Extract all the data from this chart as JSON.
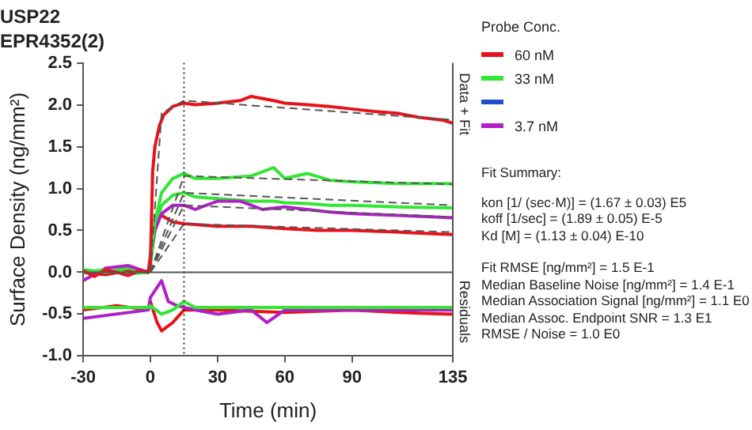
{
  "chart_data": [
    {
      "type": "line",
      "title": "USP22",
      "subtitle": "EPR4352(2)",
      "xlabel": "Time (min)",
      "ylabel": "Surface Density (ng/mm²)",
      "legend_title": "Probe Conc.",
      "xlim": [
        -30,
        135
      ],
      "xticks": [
        -30,
        0,
        30,
        60,
        90,
        135
      ],
      "ylim": [
        -1,
        2.5
      ],
      "yticks": [
        {
          "value": -1,
          "label": "-1.0"
        },
        {
          "value": -0.5,
          "label": "-0.5"
        },
        {
          "value": 0,
          "label": "0.0"
        },
        {
          "value": 0.5,
          "label": "0.5"
        },
        {
          "value": 1,
          "label": "1.0"
        },
        {
          "value": 1.5,
          "label": "1.5"
        },
        {
          "value": 2,
          "label": "2.0"
        },
        {
          "value": 2.5,
          "label": "2.5"
        }
      ],
      "grid": false,
      "legend": "top right",
      "marker": "none",
      "line_style": "solid",
      "ref_lines": [
        {
          "axis": "y",
          "value": 0,
          "color": "#555555",
          "line_style": "solid"
        },
        {
          "axis": "x",
          "value": 15,
          "color": "#333333",
          "line_style": "dotted"
        }
      ],
      "annotations": [
        "Data + Fit",
        "Residuals"
      ],
      "series": [
        {
          "name": "60 nM",
          "color": "#e8121a",
          "x": [
            -30,
            -25,
            -20,
            -15,
            -10,
            -5,
            -1,
            0,
            1,
            2,
            4,
            6,
            10,
            15,
            20,
            30,
            40,
            45,
            55,
            60,
            70,
            80,
            90,
            100,
            110,
            120,
            130,
            135
          ],
          "values": [
            0.02,
            -0.05,
            0.03,
            0,
            -0.04,
            0.02,
            0,
            0.1,
            1.2,
            1.5,
            1.75,
            1.88,
            1.98,
            2.02,
            2.0,
            2.02,
            2.05,
            2.1,
            2.05,
            2.02,
            2.0,
            1.98,
            1.95,
            1.92,
            1.9,
            1.85,
            1.82,
            1.78
          ]
        },
        {
          "name": "33 nM",
          "color": "#33e633",
          "x": [
            -30,
            -20,
            -10,
            -1,
            0,
            2,
            5,
            10,
            15,
            20,
            30,
            45,
            55,
            60,
            70,
            80,
            90,
            110,
            135
          ],
          "values": [
            0,
            0.03,
            -0.02,
            0,
            0.1,
            0.6,
            0.95,
            1.12,
            1.18,
            1.12,
            1.12,
            1.15,
            1.25,
            1.12,
            1.18,
            1.1,
            1.08,
            1.06,
            1.06
          ]
        },
        {
          "color": "#1f4fc8"
        },
        {
          "name": "3.7 nM",
          "color": "#b01fc8",
          "x": [
            -30,
            -20,
            -10,
            -1,
            0,
            2,
            5,
            10,
            15,
            20,
            30,
            40,
            45,
            50,
            60,
            70,
            80,
            90,
            110,
            135
          ],
          "values": [
            -0.1,
            0.05,
            0.08,
            0,
            0.15,
            0.5,
            0.7,
            0.8,
            0.8,
            0.75,
            0.85,
            0.85,
            0.8,
            0.75,
            0.78,
            0.75,
            0.72,
            0.7,
            0.68,
            0.65
          ]
        },
        {
          "color": "#33e633",
          "x": [
            -30,
            -20,
            -10,
            -1,
            0,
            2,
            5,
            10,
            15,
            20,
            30,
            45,
            55,
            60,
            70,
            80,
            90,
            110,
            135
          ],
          "values": [
            0.03,
            0,
            0.05,
            0,
            0.1,
            0.5,
            0.8,
            0.92,
            0.95,
            0.9,
            0.88,
            0.85,
            0.85,
            0.83,
            0.82,
            0.8,
            0.8,
            0.78,
            0.77
          ]
        },
        {
          "color": "#e8121a",
          "x": [
            -30,
            -20,
            -10,
            -1,
            0,
            2,
            5,
            10,
            15,
            30,
            45,
            60,
            75,
            90,
            110,
            135
          ],
          "values": [
            0,
            -0.03,
            0.02,
            0,
            0.2,
            0.6,
            0.68,
            0.6,
            0.58,
            0.55,
            0.55,
            0.52,
            0.5,
            0.5,
            0.48,
            0.45
          ]
        },
        {
          "color": "#555555",
          "line_style": "dashed",
          "x": [
            0,
            5,
            15,
            135
          ],
          "values": [
            0,
            1.9,
            2.05,
            1.82
          ]
        },
        {
          "color": "#555555",
          "line_style": "dashed",
          "x": [
            0,
            15,
            135
          ],
          "values": [
            0,
            1.15,
            1.05
          ]
        },
        {
          "color": "#555555",
          "line_style": "dashed",
          "x": [
            0,
            15,
            135
          ],
          "values": [
            0,
            0.95,
            0.8
          ]
        },
        {
          "color": "#555555",
          "line_style": "dashed",
          "x": [
            0,
            15,
            135
          ],
          "values": [
            0,
            0.8,
            0.66
          ]
        },
        {
          "color": "#555555",
          "line_style": "dashed",
          "x": [
            0,
            15,
            135
          ],
          "values": [
            0,
            0.58,
            0.48
          ]
        },
        {
          "color": "#33e633",
          "x": [
            -30,
            -1,
            0,
            5,
            10,
            15,
            20,
            60,
            90,
            135
          ],
          "values": [
            -0.42,
            -0.42,
            -0.4,
            -0.5,
            -0.45,
            -0.35,
            -0.42,
            -0.42,
            -0.42,
            -0.42
          ]
        },
        {
          "color": "#b01fc8",
          "x": [
            -30,
            -1,
            0,
            5,
            8,
            12,
            20,
            30,
            45,
            52,
            60,
            135
          ],
          "values": [
            -0.55,
            -0.45,
            -0.3,
            -0.1,
            -0.35,
            -0.4,
            -0.45,
            -0.5,
            -0.45,
            -0.6,
            -0.45,
            -0.45
          ]
        },
        {
          "color": "#e8121a",
          "x": [
            -30,
            -15,
            -1,
            0,
            3,
            5,
            10,
            15,
            20,
            30,
            60,
            90,
            120,
            135
          ],
          "values": [
            -0.45,
            -0.4,
            -0.45,
            -0.35,
            -0.6,
            -0.7,
            -0.6,
            -0.45,
            -0.45,
            -0.45,
            -0.48,
            -0.45,
            -0.49,
            -0.5
          ]
        }
      ]
    },
    {
      "type": "other",
      "title": "Fit Summary:",
      "annotations": [
        "kon  [1/ (sec·M)]  =   (1.67 ± 0.03) E5",
        "koff  [1/sec]  =   (1.89 ± 0.05) E-5",
        "Kd  [M]  =   (1.13 ± 0.04) E-10",
        "Fit RMSE [ng/mm²]  =   1.5 E-1",
        "Median Baseline Noise [ng/mm²]  =   1.4 E-1",
        "Median Association Signal [ng/mm²]  =   1.1 E0",
        "Median Assoc. Endpoint SNR  =   1.3 E1",
        "RMSE / Noise  =   1.0 E0"
      ]
    }
  ]
}
